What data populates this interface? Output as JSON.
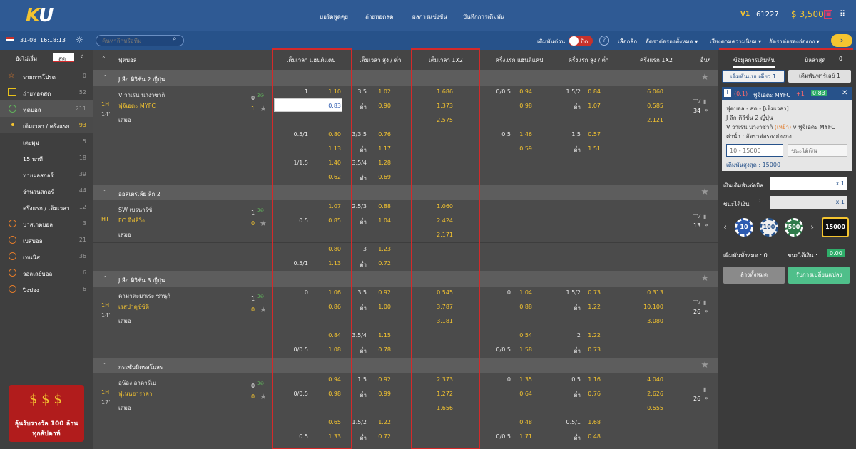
{
  "header": {
    "logo_k": "K",
    "logo_u": "U",
    "nav": [
      "บอร์ดพูดคุย",
      "ถ่ายทอดสด",
      "ผลการแข่งขัน",
      "บันทึกการเดิมพัน"
    ],
    "vip": "V1",
    "username": "I61227",
    "balance": "$ 3,500"
  },
  "subbar": {
    "date": "31-08",
    "time": "16:18:13",
    "search_placeholder": "ค้นหาลีกหรือทีม",
    "quick_bet": "เดิมพันด่วน",
    "toggle": "ปิด",
    "select_league": "เลือกลีก",
    "odds_type": "อัตราต่อรองทั้งหมด",
    "sort": "เรียงตามความนิยม",
    "odds_format": "อัตราต่อรองฮ่องกง"
  },
  "sidebar": {
    "tab_start": "ยังไม่เริ่ม",
    "tab_live": "สด",
    "items": [
      {
        "label": "รายการโปรด",
        "count": "0",
        "icon": "star-icon"
      },
      {
        "label": "ถ่ายทอดสด",
        "count": "52",
        "icon": "tv-icon"
      },
      {
        "label": "ฟุตบอล",
        "count": "211",
        "icon": "soccer-icon"
      },
      {
        "label": "เต็มเวลา / ครึ่งแรก",
        "count": "93",
        "icon": "dot-icon"
      },
      {
        "label": "เตะมุม",
        "count": "5",
        "icon": ""
      },
      {
        "label": "15 นาที",
        "count": "18",
        "icon": ""
      },
      {
        "label": "ทายผลสกอร์",
        "count": "39",
        "icon": ""
      },
      {
        "label": "จำนวนสกอร์",
        "count": "44",
        "icon": ""
      },
      {
        "label": "ครึ่งแรก / เต็มเวลา",
        "count": "12",
        "icon": ""
      },
      {
        "label": "บาสเกตบอล",
        "count": "3",
        "icon": "basketball-icon"
      },
      {
        "label": "เบสบอล",
        "count": "21",
        "icon": "baseball-icon"
      },
      {
        "label": "เทนนิส",
        "count": "36",
        "icon": "tennis-icon"
      },
      {
        "label": "วอลเลย์บอล",
        "count": "6",
        "icon": "volleyball-icon"
      },
      {
        "label": "ปิงปอง",
        "count": "6",
        "icon": "pingpong-icon"
      }
    ],
    "promo_line1": "ลุ้นรับรางวัล 100 ล้าน",
    "promo_line2": "ทุกสัปดาห์"
  },
  "columns": {
    "sport": "ฟุตบอล",
    "ft_hdp": "เต็มเวลา แฮนดิแคป",
    "ft_ou": "เต็มเวลา สูง / ต่ำ",
    "ft_1x2": "เต็มเวลา 1X2",
    "ht_hdp": "ครึ่งแรก แฮนดิแคป",
    "ht_ou": "ครึ่งแรก สูง / ต่ำ",
    "ht_1x2": "ครึ่งแรก 1X2",
    "more": "อื่นๆ"
  },
  "leagues": [
    {
      "name": "J ลีก ดิวิชั่น 2 ญี่ปุ่น",
      "home": "V วาเรน นางาซากิ",
      "away": "ฟุจิเอดะ MYFC",
      "draw": "เสมอ",
      "period": "1H",
      "minute": "14'",
      "score_h": "0",
      "score_a": "1",
      "tv": "TV",
      "more": "34"
    },
    {
      "name": "ออสเตรเลีย ลีก 2",
      "home": "SW เบรนาร์ซ์",
      "away": "FC ดีฟลิวิง",
      "draw": "เสมอ",
      "period": "HT",
      "minute": "",
      "score_h": "1",
      "score_a": "0",
      "tv": "TV",
      "more": "13"
    },
    {
      "name": "J ลีก ดิวิชั่น 3 ญี่ปุ่น",
      "home": "คามาตะมาเระ ซานุกิ",
      "away": "เรสปาคุซ์ซ์ดี",
      "draw": "เสมอ",
      "period": "1H",
      "minute": "14'",
      "score_h": "1",
      "score_a": "0",
      "tv": "TV",
      "more": "26"
    },
    {
      "name": "กระชับมิตรสโมสร",
      "home": "อุน้อง อาคาร์เบ",
      "away": "ฟูเนนฮาราคา",
      "draw": "เสมอ",
      "period": "1H",
      "minute": "17'",
      "score_h": "0",
      "score_a": "0",
      "tv": "",
      "more": "26"
    }
  ],
  "odds": {
    "l1": [
      [
        "1",
        "1.10",
        "3.5",
        "1.02",
        "1.686",
        "0/0.5",
        "0.94",
        "1.5/2",
        "0.84",
        "6.060"
      ],
      [
        "",
        "0.83",
        "ต่ำ",
        "0.90",
        "1.373",
        "",
        "0.98",
        "ต่ำ",
        "1.07",
        "0.585"
      ],
      [
        "",
        "",
        "",
        "",
        "2.575",
        "",
        "",
        "",
        "",
        "2.121"
      ],
      [
        "0.5/1",
        "0.80",
        "3/3.5",
        "0.76",
        "",
        "0.5",
        "1.46",
        "1.5",
        "0.57",
        ""
      ],
      [
        "",
        "1.13",
        "ต่ำ",
        "1.17",
        "",
        "",
        "0.59",
        "ต่ำ",
        "1.51",
        ""
      ],
      [
        "1/1.5",
        "1.40",
        "3.5/4",
        "1.28",
        "",
        "",
        "",
        "",
        "",
        ""
      ],
      [
        "",
        "0.62",
        "ต่ำ",
        "0.69",
        "",
        "",
        "",
        "",
        "",
        ""
      ]
    ],
    "l2": [
      [
        "",
        "1.07",
        "2.5/3",
        "0.88",
        "1.060",
        "",
        "",
        "",
        "",
        ""
      ],
      [
        "0.5",
        "0.85",
        "ต่ำ",
        "1.04",
        "2.424",
        "",
        "",
        "",
        "",
        ""
      ],
      [
        "",
        "",
        "",
        "",
        "2.171",
        "",
        "",
        "",
        "",
        ""
      ],
      [
        "",
        "0.80",
        "3",
        "1.23",
        "",
        "",
        "",
        "",
        "",
        ""
      ],
      [
        "0.5/1",
        "1.13",
        "ต่ำ",
        "0.72",
        "",
        "",
        "",
        "",
        "",
        ""
      ]
    ],
    "l3": [
      [
        "0",
        "1.06",
        "3.5",
        "0.92",
        "0.545",
        "0",
        "1.04",
        "1.5/2",
        "0.73",
        "0.313"
      ],
      [
        "",
        "0.86",
        "ต่ำ",
        "1.00",
        "3.787",
        "",
        "0.88",
        "ต่ำ",
        "1.22",
        "10.100"
      ],
      [
        "",
        "",
        "",
        "",
        "3.181",
        "",
        "",
        "",
        "",
        "3.080"
      ],
      [
        "",
        "0.84",
        "3.5/4",
        "1.15",
        "",
        "",
        "0.54",
        "2",
        "1.22",
        ""
      ],
      [
        "0/0.5",
        "1.08",
        "ต่ำ",
        "0.78",
        "",
        "0/0.5",
        "1.58",
        "ต่ำ",
        "0.73",
        ""
      ]
    ],
    "l4": [
      [
        "",
        "0.94",
        "1.5",
        "0.92",
        "2.373",
        "0",
        "1.35",
        "0.5",
        "1.16",
        "4.040"
      ],
      [
        "0/0.5",
        "0.98",
        "ต่ำ",
        "0.99",
        "1.272",
        "",
        "0.64",
        "ต่ำ",
        "0.76",
        "2.626"
      ],
      [
        "",
        "",
        "",
        "",
        "1.656",
        "",
        "",
        "",
        "",
        "0.555"
      ],
      [
        "",
        "0.65",
        "1.5/2",
        "1.22",
        "",
        "",
        "0.48",
        "0.5/1",
        "1.68",
        ""
      ],
      [
        "0.5",
        "1.33",
        "ต่ำ",
        "0.72",
        "",
        "0/0.5",
        "1.71",
        "ต่ำ",
        "0.48",
        ""
      ]
    ]
  },
  "right": {
    "tab_info": "ข้อมูลการเดิมพัน",
    "tab_recent": "บิลล่าสุด",
    "recent_count": "0",
    "single": "เดิมพันแบบเดี่ยว 1",
    "parlay": "เดิมพันพาร์เลย์ 1",
    "slip_score": "(0:1)",
    "slip_team": "ฟูจิเอดะ MYFC",
    "slip_plus": "+1",
    "slip_odds": "0.83",
    "slip_info1": "ฟุตบอล - สด - [เต็มเวลา]",
    "slip_info2": "J ลีก ดิวิชั่น 2 ญี่ปุ่น",
    "slip_info3a": "V วาเรน นางาซากิ",
    "slip_info3b": "(เหย้า)",
    "slip_info3c": "v ฟูจิเอดะ MYFC",
    "slip_info4": "ค่าน้ำ : อัตราต่อรองฮ่องกง",
    "stake_ph": "10 - 15000",
    "win_ph": "ชนะได้เงิน",
    "max_bet": "เดิมพันสูงสุด : 15000",
    "per_bill": "เงินเดิมพันต่อบิล :",
    "win": "ชนะได้เงิน",
    "mult": "x 1",
    "chips": [
      "10",
      "100",
      "500"
    ],
    "chip_sel": "15000",
    "total_label": "เดิมพันทั้งหมด : 0",
    "win_label": "ชนะได้เงิน :",
    "win_val": "0.00",
    "clear": "ล้างทั้งหมด",
    "accept": "รับการเปลี่ยนแปลง"
  }
}
